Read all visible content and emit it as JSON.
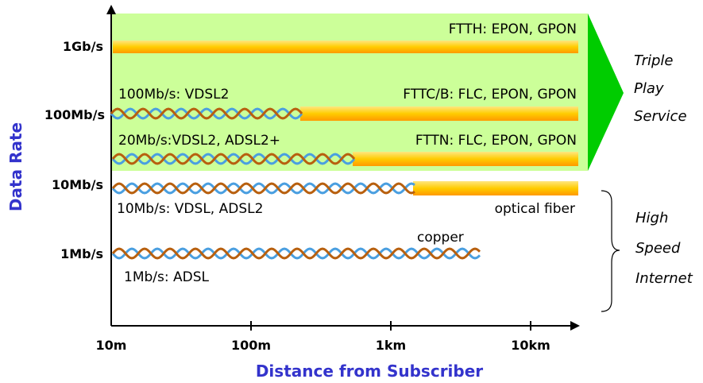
{
  "axes": {
    "y_title": "Data Rate",
    "x_title": "Distance from Subscriber",
    "y_ticks": [
      "1Gb/s",
      "100Mb/s",
      "10Mb/s",
      "1Mb/s"
    ],
    "x_ticks": [
      "10m",
      "100m",
      "1km",
      "10km"
    ]
  },
  "fiber_labels": {
    "ftth": "FTTH: EPON, GPON",
    "fttc": "FTTC/B: FLC, EPON, GPON",
    "fttn": "FTTN: FLC, EPON, GPON",
    "optical": "optical fiber"
  },
  "copper_labels": {
    "vdsl2_100": "100Mb/s: VDSL2",
    "vdsl2_20": "20Mb/s:VDSL2, ADSL2+",
    "vdsl_10": "10Mb/s: VDSL, ADSL2",
    "adsl_1": "1Mb/s: ADSL",
    "copper": "copper"
  },
  "services": {
    "triple": [
      "Triple",
      "Play",
      "Service"
    ],
    "internet": [
      "High",
      "Speed",
      "Internet"
    ]
  },
  "colors": {
    "green_region": "#ccff99",
    "green_arrow": "#00cc00",
    "fiber": "#ffcc00",
    "wire_blue": "#4a9fe0",
    "wire_brown": "#b8600f",
    "title": "#3333cc"
  }
}
